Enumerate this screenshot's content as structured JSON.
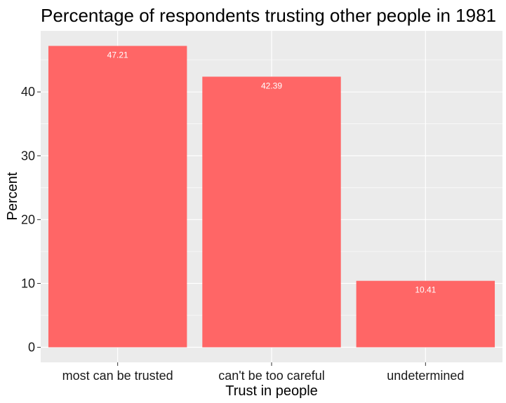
{
  "chart_data": {
    "type": "bar",
    "title": "Percentage of respondents trusting other people in 1981",
    "xlabel": "Trust in people",
    "ylabel": "Percent",
    "categories": [
      "most can be trusted",
      "can't be too careful",
      "undetermined"
    ],
    "values": [
      47.21,
      42.39,
      10.41
    ],
    "data_labels": [
      "47.21",
      "42.39",
      "10.41"
    ],
    "yticks": [
      0,
      10,
      20,
      30,
      40
    ],
    "ytick_labels": [
      "0",
      "10",
      "20",
      "30",
      "40"
    ],
    "ylim": [
      -2.36,
      49.57
    ],
    "grid": true,
    "legend": "none",
    "colors": {
      "bar": "#ff6666",
      "panel": "#ebebeb",
      "grid": "#ffffff"
    }
  }
}
